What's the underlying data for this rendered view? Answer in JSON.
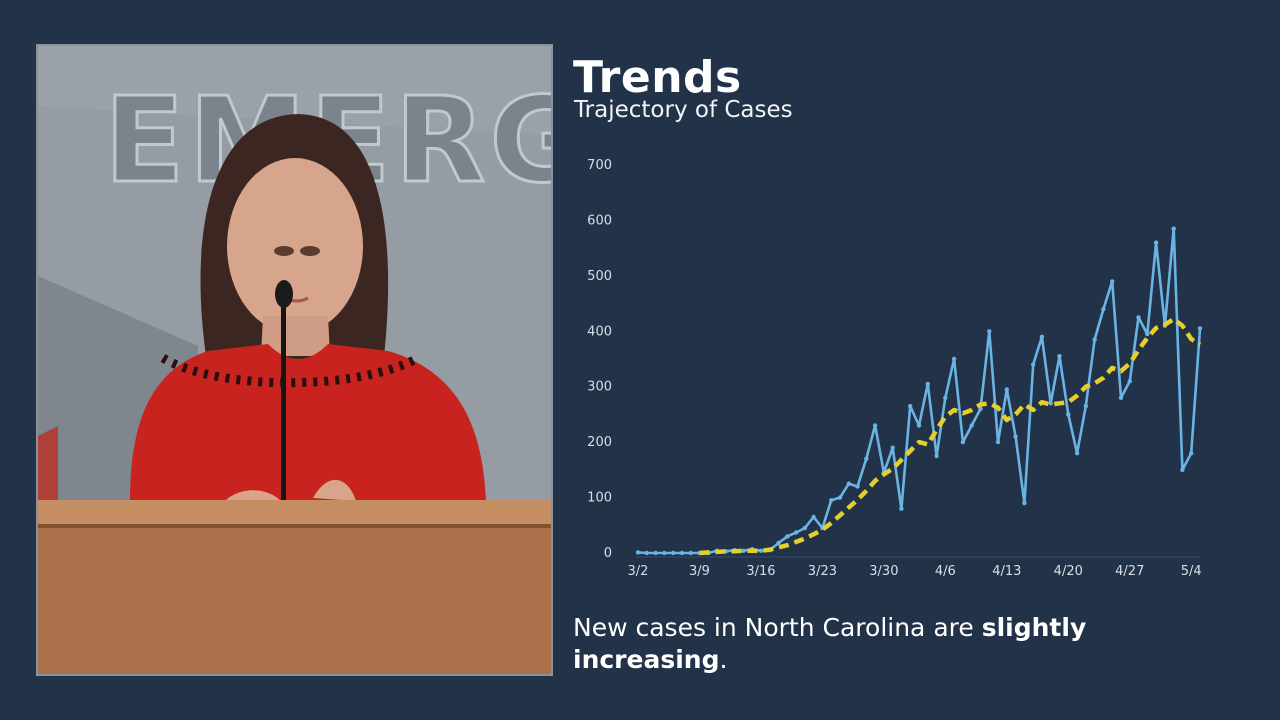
{
  "header": {
    "title": "Trends",
    "subtitle": "Trajectory of Cases"
  },
  "video": {
    "wall_sign_text": "EMERG"
  },
  "caption": {
    "prefix": "New cases in North Carolina are ",
    "emphasis": "slightly increasing",
    "suffix": "."
  },
  "colors": {
    "background": "#223249",
    "daily_line": "#6ab4e4",
    "average_line": "#e5cf2c",
    "tick_text": "#d9dee6"
  },
  "chart_data": {
    "type": "line",
    "ylim": [
      0,
      700
    ],
    "y_ticks": [
      0,
      100,
      200,
      300,
      400,
      500,
      600,
      700
    ],
    "x_tick_labels": [
      "3/2",
      "3/9",
      "3/16",
      "3/23",
      "3/30",
      "4/6",
      "4/13",
      "4/20",
      "4/27",
      "5/4"
    ],
    "x_tick_day_index": [
      0,
      7,
      14,
      21,
      28,
      35,
      42,
      49,
      56,
      63
    ],
    "x_range_day_index": [
      0,
      64
    ],
    "grid": false,
    "legend": "none",
    "series": [
      {
        "style": "solid",
        "x_day_index": [
          0,
          1,
          2,
          3,
          4,
          5,
          6,
          7,
          8,
          9,
          10,
          11,
          12,
          13,
          14,
          15,
          16,
          17,
          18,
          19,
          20,
          21,
          22,
          23,
          24,
          25,
          26,
          27,
          28,
          29,
          30,
          31,
          32,
          33,
          34,
          35,
          36,
          37,
          38,
          39,
          40,
          41,
          42,
          43,
          44,
          45,
          46,
          47,
          48,
          49,
          50,
          51,
          52,
          53,
          54,
          55,
          56,
          57,
          58,
          59,
          60,
          61,
          62,
          63,
          64
        ],
        "values": [
          1,
          0,
          0,
          0,
          0,
          0,
          0,
          0,
          0,
          4,
          3,
          5,
          4,
          7,
          4,
          5,
          18,
          30,
          37,
          45,
          65,
          45,
          95,
          100,
          125,
          120,
          170,
          230,
          145,
          190,
          80,
          265,
          230,
          305,
          175,
          280,
          350,
          200,
          230,
          260,
          400,
          200,
          295,
          210,
          90,
          340,
          390,
          270,
          355,
          250,
          180,
          265,
          385,
          440,
          490,
          280,
          310,
          425,
          395,
          560,
          410,
          585,
          150,
          180,
          405
        ]
      },
      {
        "style": "dashed",
        "x_day_index": [
          7,
          8,
          9,
          10,
          11,
          12,
          13,
          14,
          15,
          16,
          17,
          18,
          19,
          20,
          21,
          22,
          23,
          24,
          25,
          26,
          27,
          28,
          29,
          30,
          31,
          32,
          33,
          34,
          35,
          36,
          37,
          38,
          39,
          40,
          41,
          42,
          43,
          44,
          45,
          46,
          47,
          48,
          49,
          50,
          51,
          52,
          53,
          54,
          55,
          56,
          57,
          58,
          59,
          60,
          61,
          62,
          63,
          64
        ],
        "values": [
          0,
          1,
          2,
          3,
          3,
          4,
          4,
          4,
          6,
          10,
          14,
          20,
          26,
          34,
          42,
          54,
          68,
          82,
          96,
          112,
          130,
          142,
          152,
          168,
          184,
          200,
          196,
          222,
          246,
          258,
          252,
          258,
          268,
          270,
          262,
          240,
          250,
          268,
          258,
          272,
          268,
          270,
          272,
          284,
          300,
          306,
          316,
          334,
          328,
          342,
          366,
          388,
          406,
          412,
          422,
          410,
          386,
          376
        ]
      }
    ]
  }
}
